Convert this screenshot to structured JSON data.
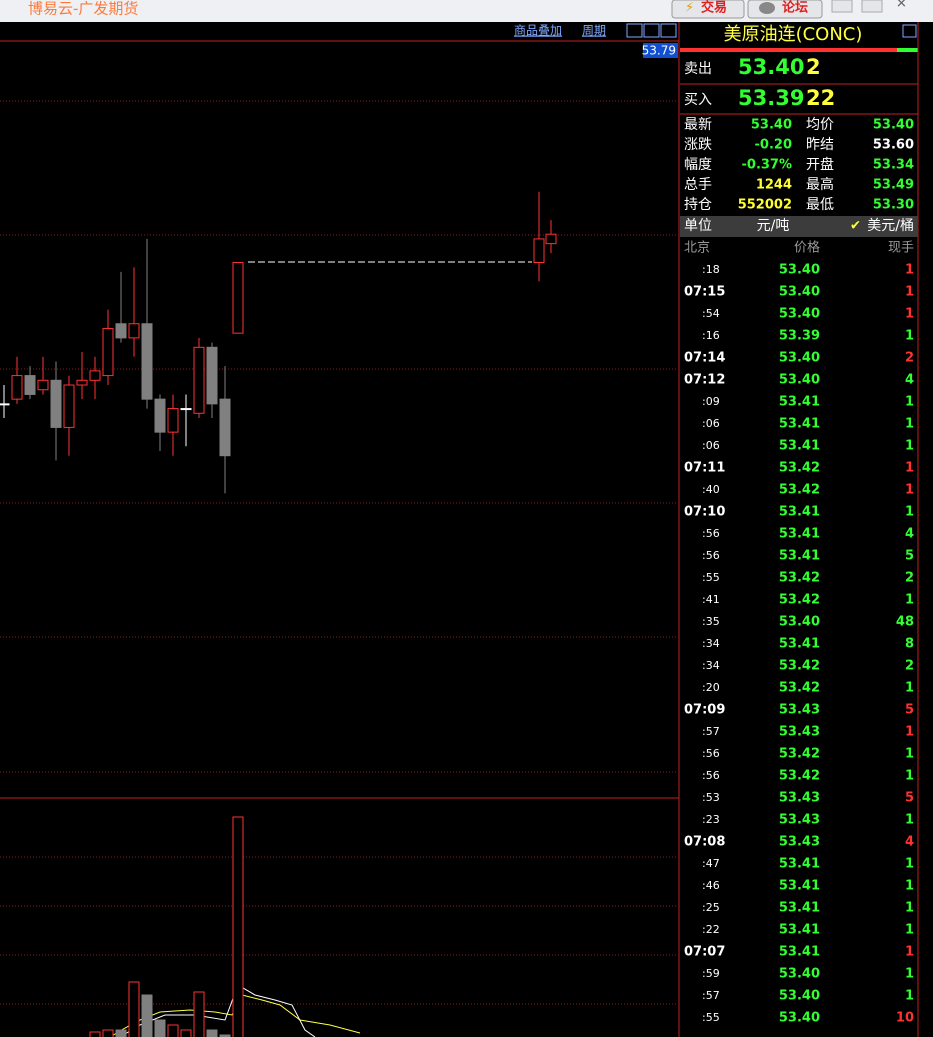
{
  "window": {
    "title": "博易云-广发期货",
    "buttons": [
      "交易",
      "论坛"
    ]
  },
  "chart": {
    "toolbar": [
      "商品叠加",
      "周期"
    ],
    "price_label": "53.79",
    "ylim": [
      52.21,
      53.81
    ],
    "up_color": "#ff3232",
    "down_color": "#808080",
    "flat_color": "#ffffff",
    "volume_up_color": "#ff3232",
    "volume_down_color": "#808080",
    "candles": [
      {
        "open": 53.04,
        "high": 53.08,
        "low": 53.01,
        "close": 53.04
      },
      {
        "open": 53.05,
        "high": 53.14,
        "low": 53.04,
        "close": 53.1
      },
      {
        "open": 53.1,
        "high": 53.12,
        "low": 53.05,
        "close": 53.06
      },
      {
        "open": 53.07,
        "high": 53.14,
        "low": 53.06,
        "close": 53.09
      },
      {
        "open": 53.09,
        "high": 53.13,
        "low": 52.92,
        "close": 52.99
      },
      {
        "open": 52.99,
        "high": 53.1,
        "low": 52.93,
        "close": 53.08
      },
      {
        "open": 53.08,
        "high": 53.15,
        "low": 53.05,
        "close": 53.09
      },
      {
        "open": 53.09,
        "high": 53.14,
        "low": 53.05,
        "close": 53.11
      },
      {
        "open": 53.1,
        "high": 53.24,
        "low": 53.08,
        "close": 53.2
      },
      {
        "open": 53.21,
        "high": 53.32,
        "low": 53.17,
        "close": 53.18
      },
      {
        "open": 53.18,
        "high": 53.33,
        "low": 53.14,
        "close": 53.21
      },
      {
        "open": 53.21,
        "high": 53.39,
        "low": 53.03,
        "close": 53.05
      },
      {
        "open": 53.05,
        "high": 53.06,
        "low": 52.94,
        "close": 52.98
      },
      {
        "open": 52.98,
        "high": 53.06,
        "low": 52.93,
        "close": 53.03
      },
      {
        "open": 53.03,
        "high": 53.06,
        "low": 52.95,
        "close": 53.03
      },
      {
        "open": 53.02,
        "high": 53.18,
        "low": 53.01,
        "close": 53.16
      },
      {
        "open": 53.16,
        "high": 53.17,
        "low": 53.01,
        "close": 53.04
      },
      {
        "open": 53.05,
        "high": 53.12,
        "low": 52.85,
        "close": 52.93
      },
      {
        "open": 53.19,
        "high": 53.34,
        "low": 53.19,
        "close": 53.34
      },
      {
        "open": 53.34,
        "high": 53.49,
        "low": 53.3,
        "close": 53.39
      },
      {
        "open": 53.38,
        "high": 53.43,
        "low": 53.36,
        "close": 53.4
      }
    ],
    "volumes": [
      null,
      null,
      null,
      null,
      null,
      null,
      null,
      8,
      10,
      10,
      58,
      45,
      20,
      15,
      10,
      48,
      10,
      5,
      223,
      null,
      null
    ]
  },
  "quote": {
    "title": "美原油连(CONC)",
    "ask": {
      "label": "卖出",
      "price": "53.40",
      "size": "2"
    },
    "bid": {
      "label": "买入",
      "price": "53.39",
      "size": "22"
    },
    "stats": [
      {
        "label": "最新",
        "value": "53.40",
        "color": "#32ff32"
      },
      {
        "label": "均价",
        "value": "53.40",
        "color": "#32ff32"
      },
      {
        "label": "涨跌",
        "value": "-0.20",
        "color": "#32ff32"
      },
      {
        "label": "昨结",
        "value": "53.60",
        "color": "#ffffff"
      },
      {
        "label": "幅度",
        "value": "-0.37%",
        "color": "#32ff32"
      },
      {
        "label": "开盘",
        "value": "53.34",
        "color": "#32ff32"
      },
      {
        "label": "总手",
        "value": "1244",
        "color": "#ffff32"
      },
      {
        "label": "最高",
        "value": "53.49",
        "color": "#32ff32"
      },
      {
        "label": "持仓",
        "value": "552002",
        "color": "#ffff32"
      },
      {
        "label": "最低",
        "value": "53.30",
        "color": "#32ff32"
      }
    ],
    "unit": {
      "label": "单位",
      "cny": "元/吨",
      "usd": "美元/桶"
    },
    "ticks_header": [
      "北京",
      "价格",
      "现手"
    ],
    "ticks": [
      {
        "time": ":18",
        "price": "53.40",
        "qty": "1",
        "color": "#ff3232"
      },
      {
        "time": "07:15",
        "price": "53.40",
        "qty": "1",
        "color": "#ff3232"
      },
      {
        "time": ":54",
        "price": "53.40",
        "qty": "1",
        "color": "#ff3232"
      },
      {
        "time": ":16",
        "price": "53.39",
        "qty": "1",
        "color": "#32ff32"
      },
      {
        "time": "07:14",
        "price": "53.40",
        "qty": "2",
        "color": "#ff3232"
      },
      {
        "time": "07:12",
        "price": "53.40",
        "qty": "4",
        "color": "#32ff32"
      },
      {
        "time": ":09",
        "price": "53.41",
        "qty": "1",
        "color": "#32ff32"
      },
      {
        "time": ":06",
        "price": "53.41",
        "qty": "1",
        "color": "#32ff32"
      },
      {
        "time": ":06",
        "price": "53.41",
        "qty": "1",
        "color": "#32ff32"
      },
      {
        "time": "07:11",
        "price": "53.42",
        "qty": "1",
        "color": "#ff3232"
      },
      {
        "time": ":40",
        "price": "53.42",
        "qty": "1",
        "color": "#ff3232"
      },
      {
        "time": "07:10",
        "price": "53.41",
        "qty": "1",
        "color": "#32ff32"
      },
      {
        "time": ":56",
        "price": "53.41",
        "qty": "4",
        "color": "#32ff32"
      },
      {
        "time": ":56",
        "price": "53.41",
        "qty": "5",
        "color": "#32ff32"
      },
      {
        "time": ":55",
        "price": "53.42",
        "qty": "2",
        "color": "#32ff32"
      },
      {
        "time": ":41",
        "price": "53.42",
        "qty": "1",
        "color": "#32ff32"
      },
      {
        "time": ":35",
        "price": "53.40",
        "qty": "48",
        "color": "#32ff32"
      },
      {
        "time": ":34",
        "price": "53.41",
        "qty": "8",
        "color": "#32ff32"
      },
      {
        "time": ":34",
        "price": "53.42",
        "qty": "2",
        "color": "#32ff32"
      },
      {
        "time": ":20",
        "price": "53.42",
        "qty": "1",
        "color": "#32ff32"
      },
      {
        "time": "07:09",
        "price": "53.43",
        "qty": "5",
        "color": "#ff3232"
      },
      {
        "time": ":57",
        "price": "53.43",
        "qty": "1",
        "color": "#ff3232"
      },
      {
        "time": ":56",
        "price": "53.42",
        "qty": "1",
        "color": "#32ff32"
      },
      {
        "time": ":56",
        "price": "53.42",
        "qty": "1",
        "color": "#32ff32"
      },
      {
        "time": ":53",
        "price": "53.43",
        "qty": "5",
        "color": "#ff3232"
      },
      {
        "time": ":23",
        "price": "53.43",
        "qty": "1",
        "color": "#32ff32"
      },
      {
        "time": "07:08",
        "price": "53.43",
        "qty": "4",
        "color": "#ff3232"
      },
      {
        "time": ":47",
        "price": "53.41",
        "qty": "1",
        "color": "#32ff32"
      },
      {
        "time": ":46",
        "price": "53.41",
        "qty": "1",
        "color": "#32ff32"
      },
      {
        "time": ":25",
        "price": "53.41",
        "qty": "1",
        "color": "#32ff32"
      },
      {
        "time": ":22",
        "price": "53.41",
        "qty": "1",
        "color": "#32ff32"
      },
      {
        "time": "07:07",
        "price": "53.41",
        "qty": "1",
        "color": "#ff3232"
      },
      {
        "time": ":59",
        "price": "53.40",
        "qty": "1",
        "color": "#32ff32"
      },
      {
        "time": ":57",
        "price": "53.40",
        "qty": "1",
        "color": "#32ff32"
      },
      {
        "time": ":55",
        "price": "53.40",
        "qty": "10",
        "color": "#ff3232"
      }
    ]
  }
}
